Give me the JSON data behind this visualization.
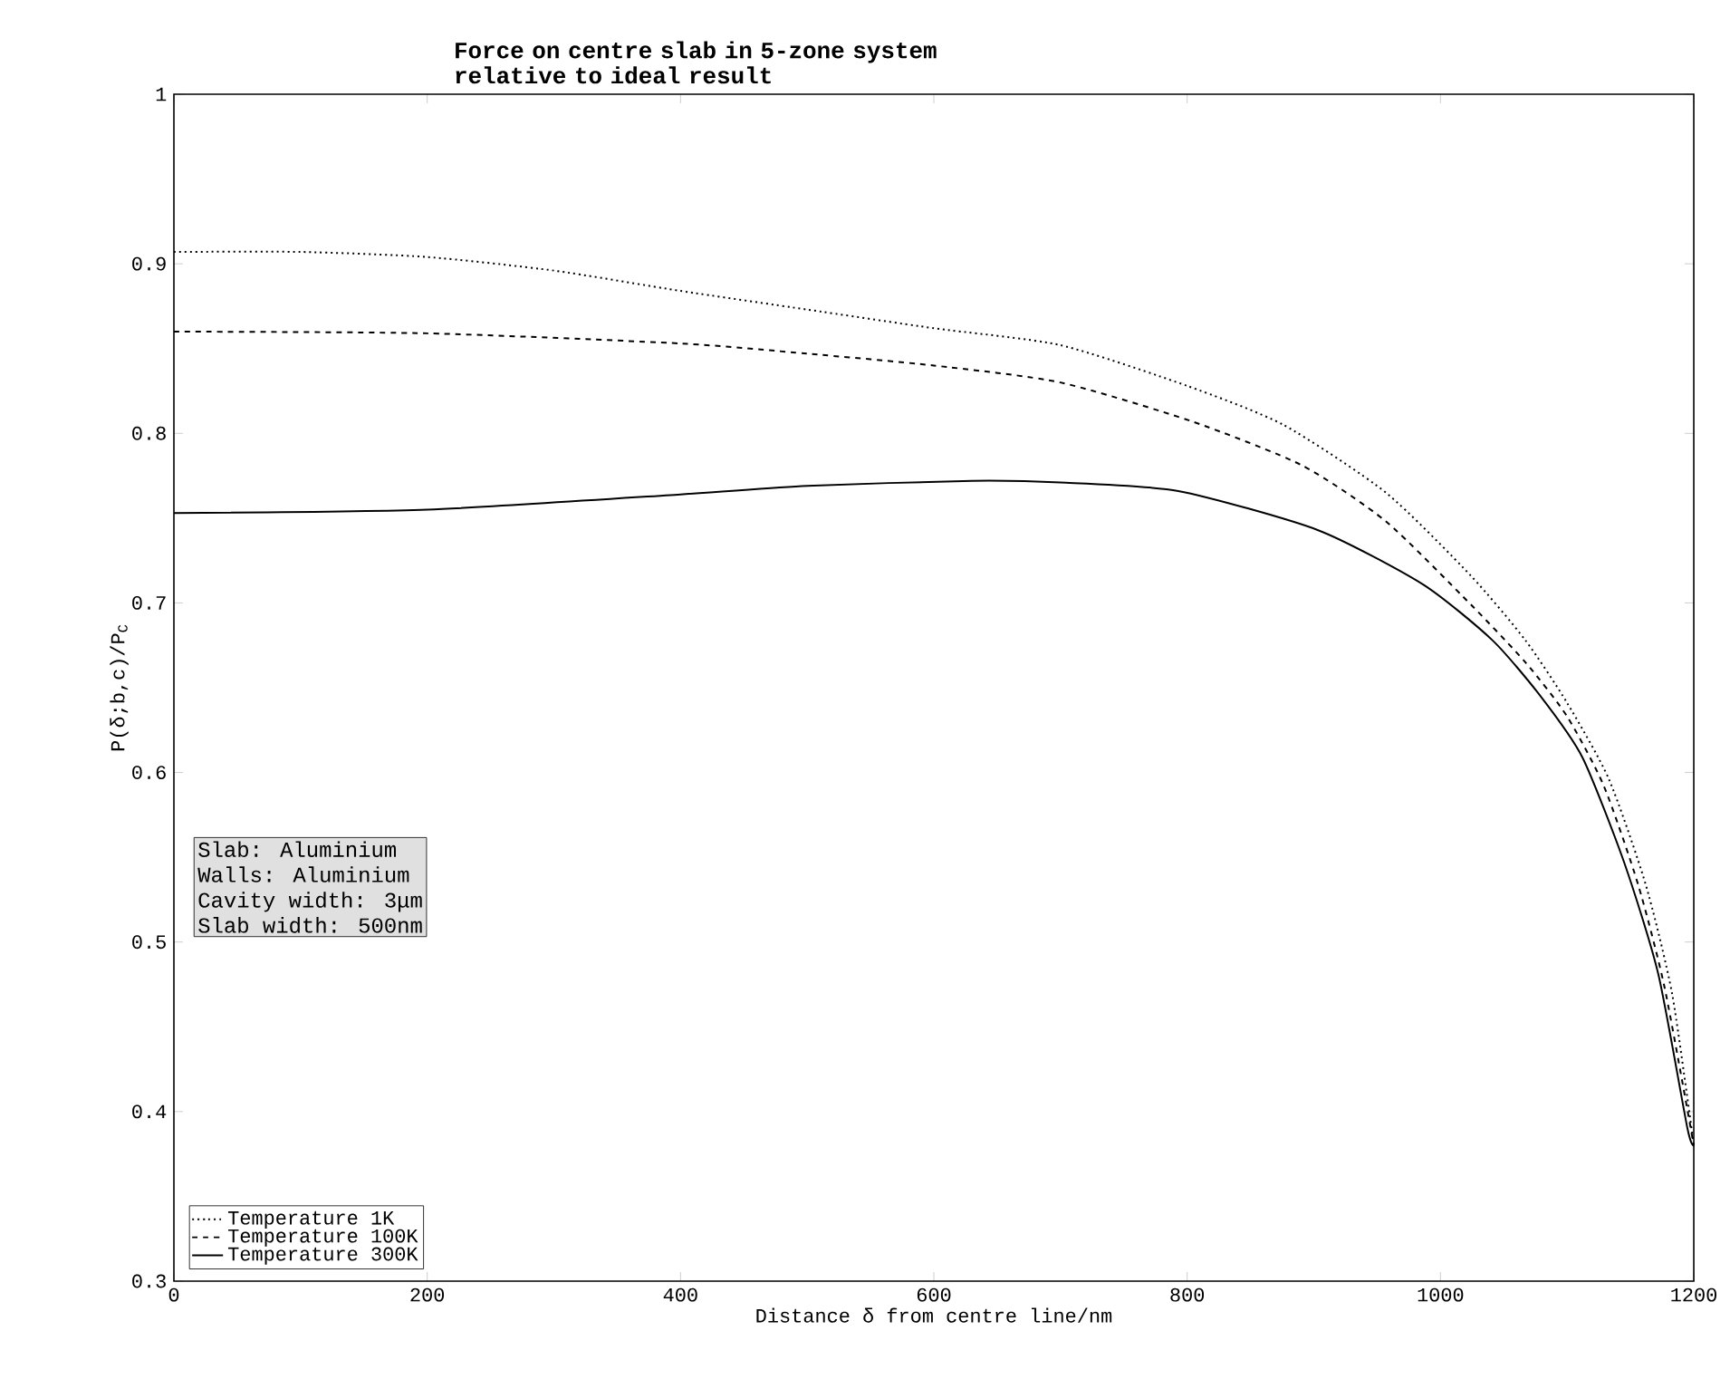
{
  "chart_data": {
    "type": "line",
    "title": "Force on centre slab in 5-zone system\nrelative to ideal result",
    "xlabel": "Distance δ from centre line/nm",
    "ylabel": "P(δ;b,c)/P$_{C}$",
    "xlim": [
      0,
      1200
    ],
    "xticks": [
      0,
      200,
      400,
      600,
      800,
      1000,
      1200
    ],
    "ylim": [
      0.3,
      1
    ],
    "yticks": [
      0.3,
      0.4,
      0.5,
      0.6,
      0.7,
      0.8,
      0.9,
      1
    ],
    "legend": "bottom left",
    "grid": false,
    "marker": "none",
    "annotations": [
      "Slab:  Aluminium",
      "Walls:  Aluminium",
      "Cavity width:  3μm",
      "Slab width:  500nm"
    ],
    "series": [
      {
        "name": "Temperature   1K",
        "color": "#000000",
        "line_style": "dotted",
        "x": [
          0,
          100,
          200,
          300,
          400,
          500,
          600,
          700,
          800,
          876,
          957,
          1024,
          1067,
          1100,
          1133,
          1162,
          1183,
          1200
        ],
        "values": [
          0.907,
          0.907,
          0.904,
          0.896,
          0.884,
          0.873,
          0.862,
          0.852,
          0.828,
          0.805,
          0.765,
          0.716,
          0.678,
          0.641,
          0.596,
          0.534,
          0.469,
          0.38
        ]
      },
      {
        "name": "Temperature 100K",
        "color": "#000000",
        "line_style": "dashed",
        "x": [
          0,
          200,
          400,
          500,
          600,
          700,
          804,
          891,
          957,
          1024,
          1067,
          1100,
          1129,
          1156,
          1177,
          1200
        ],
        "values": [
          0.86,
          0.859,
          0.853,
          0.847,
          0.84,
          0.83,
          0.807,
          0.781,
          0.748,
          0.699,
          0.665,
          0.633,
          0.592,
          0.534,
          0.473,
          0.38
        ]
      },
      {
        "name": "Temperature 300K",
        "color": "#000000",
        "line_style": "solid",
        "x": [
          0,
          200,
          400,
          500,
          630,
          700,
          793,
          903,
          986,
          1041,
          1079,
          1112,
          1145,
          1172,
          1195,
          1200
        ],
        "values": [
          0.753,
          0.755,
          0.764,
          0.769,
          0.772,
          0.771,
          0.766,
          0.743,
          0.711,
          0.678,
          0.645,
          0.609,
          0.547,
          0.481,
          0.39,
          0.38
        ]
      }
    ]
  }
}
